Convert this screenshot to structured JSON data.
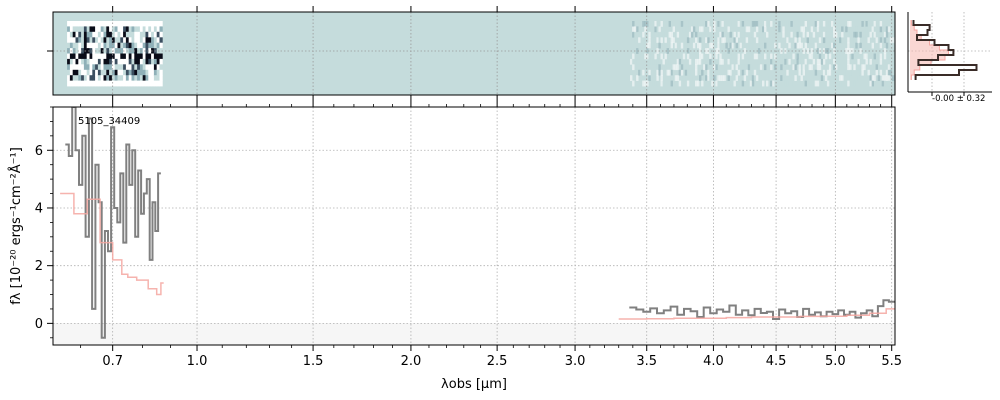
{
  "chart_data": [
    {
      "panel": "2d-spectrum",
      "type": "heatmap",
      "description_free": true,
      "x_range": [
        0.52,
        5.53
      ],
      "rows": 12,
      "colormap": [
        "#ffffff",
        "#c5dcdc",
        "#8fb0b8",
        "#3c4f60",
        "#0a0c18"
      ],
      "background": "#c5dcdc"
    },
    {
      "panel": "profile",
      "type": "line",
      "annotation": "-0.00 ± 0.32",
      "profile_values": [
        0.05,
        0.28,
        0.25,
        0.1,
        0.35,
        0.55,
        0.62,
        0.4,
        0.12,
        0.95,
        0.7,
        0.08
      ],
      "model_values": [
        0.02,
        0.06,
        0.1,
        0.16,
        0.28,
        0.42,
        0.55,
        0.5,
        0.3,
        0.14,
        0.06,
        0.02
      ],
      "colors": {
        "profile": "#3a2c28",
        "model": "#f5b7ae"
      }
    },
    {
      "panel": "1d-spectrum",
      "type": "line",
      "title": "",
      "label": "5105_34409",
      "xlabel": "λobs [μm]",
      "ylabel": "fλ [10⁻²⁰ ergs⁻¹cm⁻²Å⁻¹]",
      "xlim": [
        0.52,
        5.53
      ],
      "ylim": [
        -0.75,
        7.5
      ],
      "x_scale": "sqrt",
      "x_ticks": [
        0.7,
        1.0,
        1.5,
        2.0,
        2.5,
        3.0,
        3.5,
        4.0,
        4.5,
        5.0,
        5.5
      ],
      "x_tick_labels": [
        "0.7",
        "1.0",
        "1.5",
        "2.0",
        "2.5",
        "3.0",
        "3.5",
        "4.0",
        "4.5",
        "5.0",
        "5.5"
      ],
      "y_ticks": [
        0,
        2,
        4,
        6
      ],
      "y_tick_labels": [
        "0",
        "2",
        "4",
        "6"
      ],
      "grid": true,
      "colors": {
        "data": "#808080",
        "model": "#f4a6a0",
        "band": "#eeeeee"
      },
      "series": [
        {
          "role": "data",
          "x": [
            0.56,
            0.57,
            0.58,
            0.59,
            0.6,
            0.61,
            0.62,
            0.63,
            0.64,
            0.65,
            0.66,
            0.67,
            0.68,
            0.69,
            0.7,
            0.71,
            0.72,
            0.73,
            0.74,
            0.75,
            0.76,
            0.77,
            0.78,
            0.79,
            0.8,
            0.81,
            0.82,
            0.83,
            0.84,
            0.85,
            0.86
          ],
          "y": [
            6.2,
            5.8,
            7.5,
            6.0,
            4.8,
            6.5,
            3.0,
            7.1,
            0.5,
            5.5,
            4.2,
            -0.5,
            3.2,
            2.5,
            6.8,
            4.0,
            3.5,
            5.2,
            2.8,
            6.2,
            4.8,
            6.0,
            3.0,
            5.3,
            3.8,
            4.5,
            5.0,
            2.2,
            4.2,
            3.2,
            5.2
          ]
        },
        {
          "role": "data",
          "x": [
            3.4,
            3.45,
            3.5,
            3.55,
            3.6,
            3.65,
            3.7,
            3.75,
            3.8,
            3.85,
            3.9,
            3.95,
            4.0,
            4.05,
            4.1,
            4.15,
            4.2,
            4.25,
            4.3,
            4.35,
            4.4,
            4.45,
            4.5,
            4.55,
            4.6,
            4.65,
            4.7,
            4.75,
            4.8,
            4.85,
            4.9,
            4.95,
            5.0,
            5.05,
            5.1,
            5.15,
            5.2,
            5.25,
            5.3,
            5.35,
            5.4,
            5.45,
            5.5
          ],
          "y": [
            0.55,
            0.48,
            0.4,
            0.52,
            0.35,
            0.45,
            0.58,
            0.3,
            0.5,
            0.42,
            0.22,
            0.55,
            0.35,
            0.48,
            0.4,
            0.62,
            0.3,
            0.45,
            0.28,
            0.5,
            0.36,
            0.4,
            0.15,
            0.48,
            0.35,
            0.42,
            0.22,
            0.5,
            0.3,
            0.38,
            0.25,
            0.4,
            0.32,
            0.45,
            0.3,
            0.4,
            0.2,
            0.35,
            0.45,
            0.25,
            0.6,
            0.8,
            0.75
          ]
        },
        {
          "role": "model",
          "x": [
            0.56,
            0.6,
            0.64,
            0.68,
            0.72,
            0.74,
            0.76,
            0.8,
            0.84,
            0.86,
            0.87
          ],
          "y": [
            4.5,
            3.8,
            4.3,
            2.8,
            2.2,
            1.7,
            1.6,
            1.5,
            1.2,
            1.0,
            1.4
          ]
        },
        {
          "role": "model",
          "x": [
            3.4,
            3.6,
            3.8,
            4.0,
            4.2,
            4.4,
            4.6,
            4.8,
            5.0,
            5.2,
            5.4,
            5.5
          ],
          "y": [
            0.15,
            0.16,
            0.18,
            0.18,
            0.2,
            0.22,
            0.22,
            0.24,
            0.25,
            0.28,
            0.35,
            0.5
          ]
        }
      ]
    }
  ]
}
